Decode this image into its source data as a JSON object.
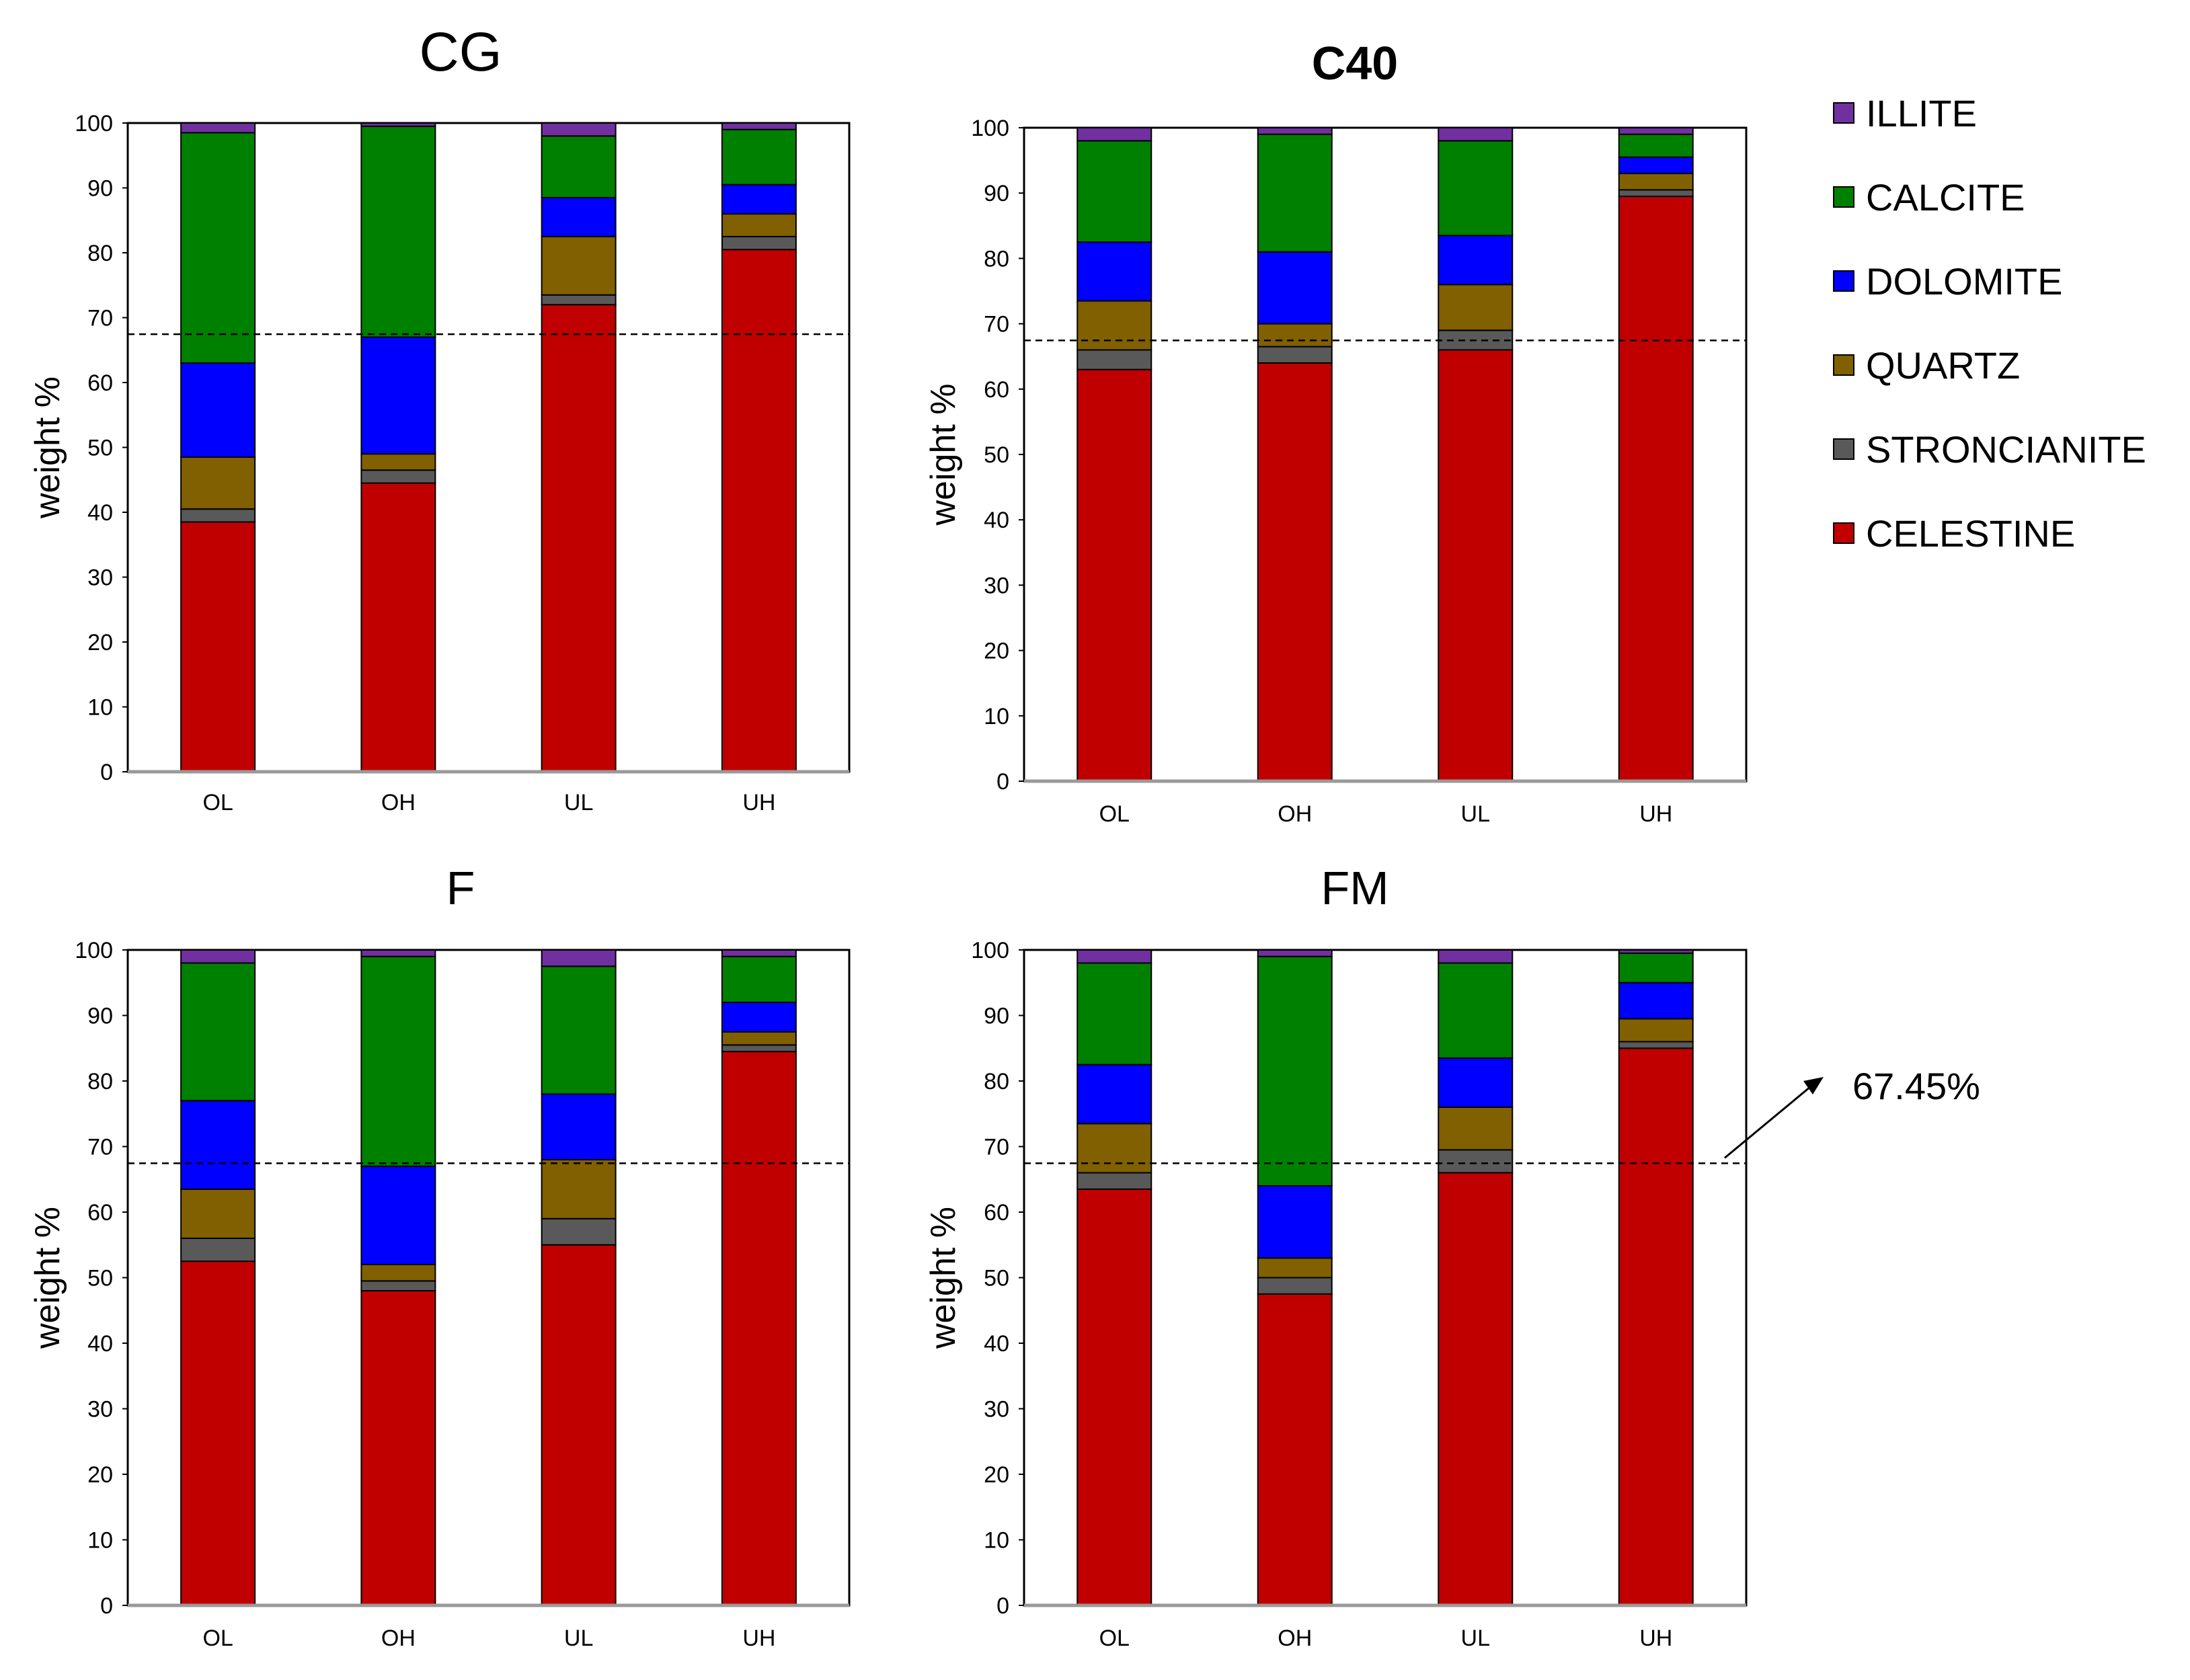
{
  "chart_data": [
    {
      "type": "bar",
      "stacked": true,
      "title": "CG",
      "ylabel": "weight %",
      "ylim": [
        0,
        100
      ],
      "yticks": [
        "0",
        "10",
        "20",
        "30",
        "40",
        "50",
        "60",
        "70",
        "80",
        "90",
        "100"
      ],
      "categories": [
        "OL",
        "OH",
        "UL",
        "UH"
      ],
      "reference_line": 67.45,
      "series": [
        {
          "name": "CELESTINE",
          "values": [
            38.5,
            44.5,
            72.0,
            80.5
          ]
        },
        {
          "name": "STRONCIANITE",
          "values": [
            2.0,
            2.0,
            1.5,
            2.0
          ]
        },
        {
          "name": "QUARTZ",
          "values": [
            8.0,
            2.5,
            9.0,
            3.5
          ]
        },
        {
          "name": "DOLOMITE",
          "values": [
            14.5,
            18.0,
            6.0,
            4.5
          ]
        },
        {
          "name": "CALCITE",
          "values": [
            35.5,
            32.5,
            9.5,
            8.5
          ]
        },
        {
          "name": "ILLITE",
          "values": [
            1.5,
            0.5,
            2.0,
            1.0
          ]
        }
      ]
    },
    {
      "type": "bar",
      "stacked": true,
      "title": "C40",
      "ylabel": "weight %",
      "ylim": [
        0,
        100
      ],
      "yticks": [
        "0",
        "10",
        "20",
        "30",
        "40",
        "50",
        "60",
        "70",
        "80",
        "90",
        "100"
      ],
      "categories": [
        "OL",
        "OH",
        "UL",
        "UH"
      ],
      "reference_line": 67.45,
      "series": [
        {
          "name": "CELESTINE",
          "values": [
            63.0,
            64.0,
            66.0,
            89.5
          ]
        },
        {
          "name": "STRONCIANITE",
          "values": [
            3.0,
            2.5,
            3.0,
            1.0
          ]
        },
        {
          "name": "QUARTZ",
          "values": [
            7.5,
            3.5,
            7.0,
            2.5
          ]
        },
        {
          "name": "DOLOMITE",
          "values": [
            9.0,
            11.0,
            7.5,
            2.5
          ]
        },
        {
          "name": "CALCITE",
          "values": [
            15.5,
            18.0,
            14.5,
            3.5
          ]
        },
        {
          "name": "ILLITE",
          "values": [
            2.0,
            1.0,
            2.0,
            1.0
          ]
        }
      ]
    },
    {
      "type": "bar",
      "stacked": true,
      "title": "F",
      "ylabel": "weight %",
      "ylim": [
        0,
        100
      ],
      "yticks": [
        "0",
        "10",
        "20",
        "30",
        "40",
        "50",
        "60",
        "70",
        "80",
        "90",
        "100"
      ],
      "categories": [
        "OL",
        "OH",
        "UL",
        "UH"
      ],
      "reference_line": 67.45,
      "series": [
        {
          "name": "CELESTINE",
          "values": [
            52.5,
            48.0,
            55.0,
            84.5
          ]
        },
        {
          "name": "STRONCIANITE",
          "values": [
            3.5,
            1.5,
            4.0,
            1.0
          ]
        },
        {
          "name": "QUARTZ",
          "values": [
            7.5,
            2.5,
            9.0,
            2.0
          ]
        },
        {
          "name": "DOLOMITE",
          "values": [
            13.5,
            15.0,
            10.0,
            4.5
          ]
        },
        {
          "name": "CALCITE",
          "values": [
            21.0,
            32.0,
            19.5,
            7.0
          ]
        },
        {
          "name": "ILLITE",
          "values": [
            2.0,
            1.0,
            2.5,
            1.0
          ]
        }
      ]
    },
    {
      "type": "bar",
      "stacked": true,
      "title": "FM",
      "ylabel": "weight %",
      "ylim": [
        0,
        100
      ],
      "yticks": [
        "0",
        "10",
        "20",
        "30",
        "40",
        "50",
        "60",
        "70",
        "80",
        "90",
        "100"
      ],
      "categories": [
        "OL",
        "OH",
        "UL",
        "UH"
      ],
      "reference_line": 67.45,
      "reference_label": "67.45%",
      "series": [
        {
          "name": "CELESTINE",
          "values": [
            63.5,
            47.5,
            66.0,
            85.0
          ]
        },
        {
          "name": "STRONCIANITE",
          "values": [
            2.5,
            2.5,
            3.5,
            1.0
          ]
        },
        {
          "name": "QUARTZ",
          "values": [
            7.5,
            3.0,
            6.5,
            3.5
          ]
        },
        {
          "name": "DOLOMITE",
          "values": [
            9.0,
            11.0,
            7.5,
            5.5
          ]
        },
        {
          "name": "CALCITE",
          "values": [
            15.5,
            35.0,
            14.5,
            4.5
          ]
        },
        {
          "name": "ILLITE",
          "values": [
            2.0,
            1.0,
            2.0,
            0.5
          ]
        }
      ]
    }
  ],
  "legend": [
    {
      "label": "ILLITE",
      "color": "#7030a0"
    },
    {
      "label": "CALCITE",
      "color": "#008000"
    },
    {
      "label": "DOLOMITE",
      "color": "#0000ff"
    },
    {
      "label": "QUARTZ",
      "color": "#806000"
    },
    {
      "label": "STRONCIANITE",
      "color": "#595959"
    },
    {
      "label": "CELESTINE",
      "color": "#c00000"
    }
  ],
  "colors": {
    "CELESTINE": "#c00000",
    "STRONCIANITE": "#595959",
    "QUARTZ": "#806000",
    "DOLOMITE": "#0000ff",
    "CALCITE": "#008000",
    "ILLITE": "#7030a0"
  }
}
